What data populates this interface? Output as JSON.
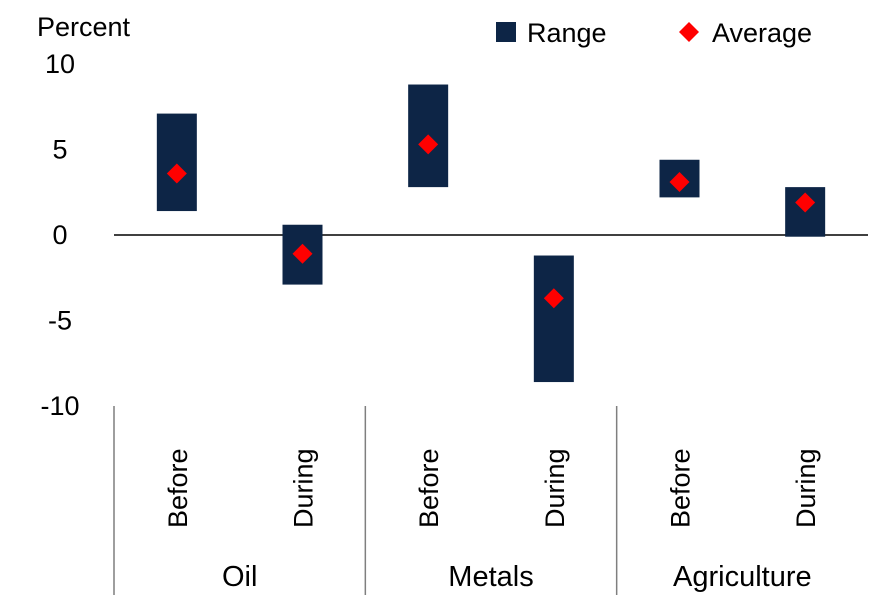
{
  "chart_data": {
    "type": "range-bar",
    "ylabel": "Percent",
    "ylim": [
      -10,
      10
    ],
    "yticks": [
      10,
      5,
      0,
      -5,
      -10
    ],
    "legend": {
      "placement": "top-right",
      "range_label": "Range",
      "average_label": "Average"
    },
    "groups": [
      {
        "name": "Oil",
        "categories": [
          "Before",
          "During"
        ]
      },
      {
        "name": "Metals",
        "categories": [
          "Before",
          "During"
        ]
      },
      {
        "name": "Agriculture",
        "categories": [
          "Before",
          "During"
        ]
      }
    ],
    "series": [
      {
        "group": "Oil",
        "category": "Before",
        "low": 1.4,
        "high": 7.1,
        "average": 3.6
      },
      {
        "group": "Oil",
        "category": "During",
        "low": -2.9,
        "high": 0.6,
        "average": -1.1
      },
      {
        "group": "Metals",
        "category": "Before",
        "low": 2.8,
        "high": 8.8,
        "average": 5.3
      },
      {
        "group": "Metals",
        "category": "During",
        "low": -8.6,
        "high": -1.2,
        "average": -3.7
      },
      {
        "group": "Agriculture",
        "category": "Before",
        "low": 2.2,
        "high": 4.4,
        "average": 3.1
      },
      {
        "group": "Agriculture",
        "category": "During",
        "low": -0.1,
        "high": 2.8,
        "average": 1.9
      }
    ],
    "colors": {
      "range": "#0d2546",
      "average": "#ff0000",
      "axis": "#000000",
      "separator": "#7f7f7f"
    }
  }
}
